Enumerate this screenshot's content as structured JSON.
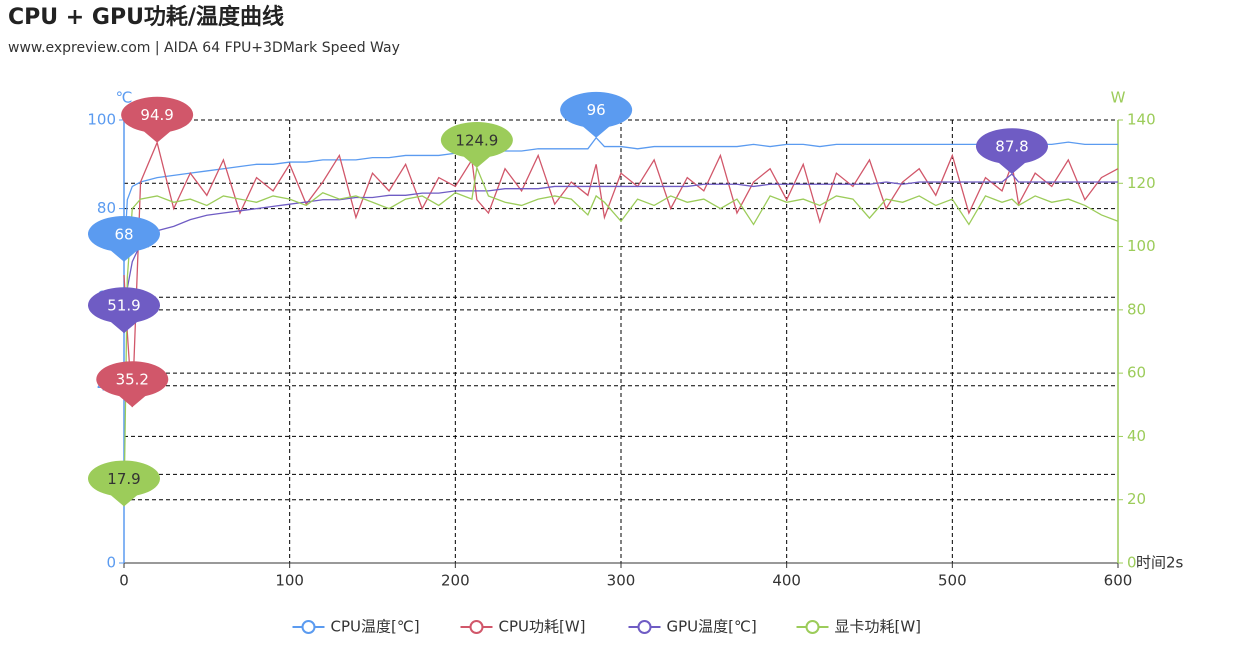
{
  "chart_data": {
    "type": "line",
    "title": "CPU + GPU功耗/温度曲线",
    "subtitle": "www.expreview.com | AIDA 64 FPU+3DMark Speed Way",
    "y_label": "℃",
    "y2_label": "W",
    "x_label": "时间2s",
    "x": [
      0,
      2,
      5,
      10,
      20,
      30,
      40,
      50,
      60,
      70,
      80,
      90,
      100,
      110,
      120,
      130,
      140,
      150,
      160,
      170,
      180,
      190,
      200,
      210,
      213,
      220,
      230,
      240,
      250,
      260,
      270,
      280,
      285,
      290,
      300,
      310,
      320,
      330,
      340,
      350,
      360,
      370,
      380,
      390,
      400,
      410,
      420,
      430,
      440,
      450,
      460,
      470,
      480,
      490,
      500,
      510,
      520,
      530,
      536,
      540,
      550,
      560,
      570,
      580,
      590,
      600
    ],
    "xlim": [
      0,
      600
    ],
    "xticks": [
      0,
      100,
      200,
      300,
      400,
      500,
      600
    ],
    "ylim": [
      0,
      100
    ],
    "yticks": [
      0,
      20,
      40,
      60,
      80,
      100
    ],
    "y2lim": [
      0,
      140
    ],
    "y2ticks": [
      0,
      20,
      40,
      60,
      80,
      100,
      120,
      140
    ],
    "grid": true,
    "markers": [
      "max",
      "min"
    ],
    "legend": "bottom",
    "series": [
      {
        "name": "CPU温度[℃]",
        "color": "#5b9bf0",
        "axis": "y",
        "values": [
          68,
          82,
          85,
          86,
          87,
          87.5,
          88,
          88.5,
          89,
          89.5,
          90,
          90,
          90.5,
          90.5,
          91,
          91,
          91,
          91.5,
          91.5,
          92,
          92,
          92,
          92.5,
          92.5,
          93,
          93,
          93,
          93,
          93.5,
          93.5,
          93.5,
          93.5,
          96,
          94,
          94,
          93.5,
          94,
          94,
          94,
          94,
          94,
          94,
          94.5,
          94,
          94.5,
          94.5,
          94,
          94.5,
          94.5,
          94.5,
          94.5,
          94.5,
          94.5,
          94.5,
          94.5,
          94.5,
          94.5,
          94.5,
          94.5,
          94.5,
          94.5,
          94.5,
          95,
          94.5,
          94.5,
          94.5
        ]
      },
      {
        "name": "CPU功耗[W]",
        "color": "#d1576a",
        "axis": "y",
        "values": [
          65,
          52,
          35.2,
          86,
          94.9,
          80,
          88,
          83,
          91,
          79,
          87,
          84,
          90,
          81,
          86,
          92,
          78,
          88,
          84,
          90,
          80,
          87,
          85,
          91,
          82,
          79,
          89,
          84,
          92,
          81,
          86,
          83,
          90,
          78,
          88,
          85,
          91,
          80,
          87,
          84,
          92,
          79,
          86,
          89,
          82,
          90,
          77,
          88,
          85,
          91,
          80,
          86,
          89,
          83,
          92,
          79,
          87,
          84,
          90,
          81,
          88,
          85,
          91,
          82,
          87,
          89
        ]
      },
      {
        "name": "GPU温度[℃]",
        "color": "#6f5cc4",
        "axis": "y",
        "values": [
          51.9,
          62,
          68,
          72,
          75,
          76,
          77.5,
          78.5,
          79,
          79.5,
          80,
          80.5,
          81,
          81.5,
          82,
          82,
          82.5,
          82.5,
          83,
          83,
          83.5,
          83.5,
          84,
          84,
          84,
          84,
          84.5,
          84.5,
          84.5,
          85,
          85,
          85,
          85,
          85,
          85,
          85,
          85,
          85,
          85,
          85.5,
          85.5,
          85.5,
          85,
          85.5,
          85.5,
          85.5,
          85.5,
          85.5,
          85.5,
          85.5,
          86,
          85.5,
          86,
          86,
          86,
          86,
          86,
          86,
          87.8,
          86,
          86,
          86,
          86,
          86,
          86,
          86
        ]
      },
      {
        "name": "显卡功耗[W]",
        "color": "#9ccc5a",
        "axis": "y2",
        "values": [
          17.9,
          90,
          112,
          115,
          116,
          114,
          115,
          113,
          116,
          115,
          114,
          116,
          115,
          113,
          117,
          115,
          116,
          114,
          112,
          115,
          116,
          113,
          117,
          115,
          124.9,
          116,
          114,
          113,
          115,
          116,
          115,
          110,
          116,
          114,
          108,
          115,
          113,
          116,
          114,
          115,
          112,
          115,
          107,
          116,
          114,
          115,
          113,
          116,
          115,
          109,
          115,
          114,
          116,
          113,
          115,
          107,
          116,
          114,
          115,
          113,
          116,
          114,
          115,
          113,
          110,
          108
        ]
      }
    ]
  }
}
